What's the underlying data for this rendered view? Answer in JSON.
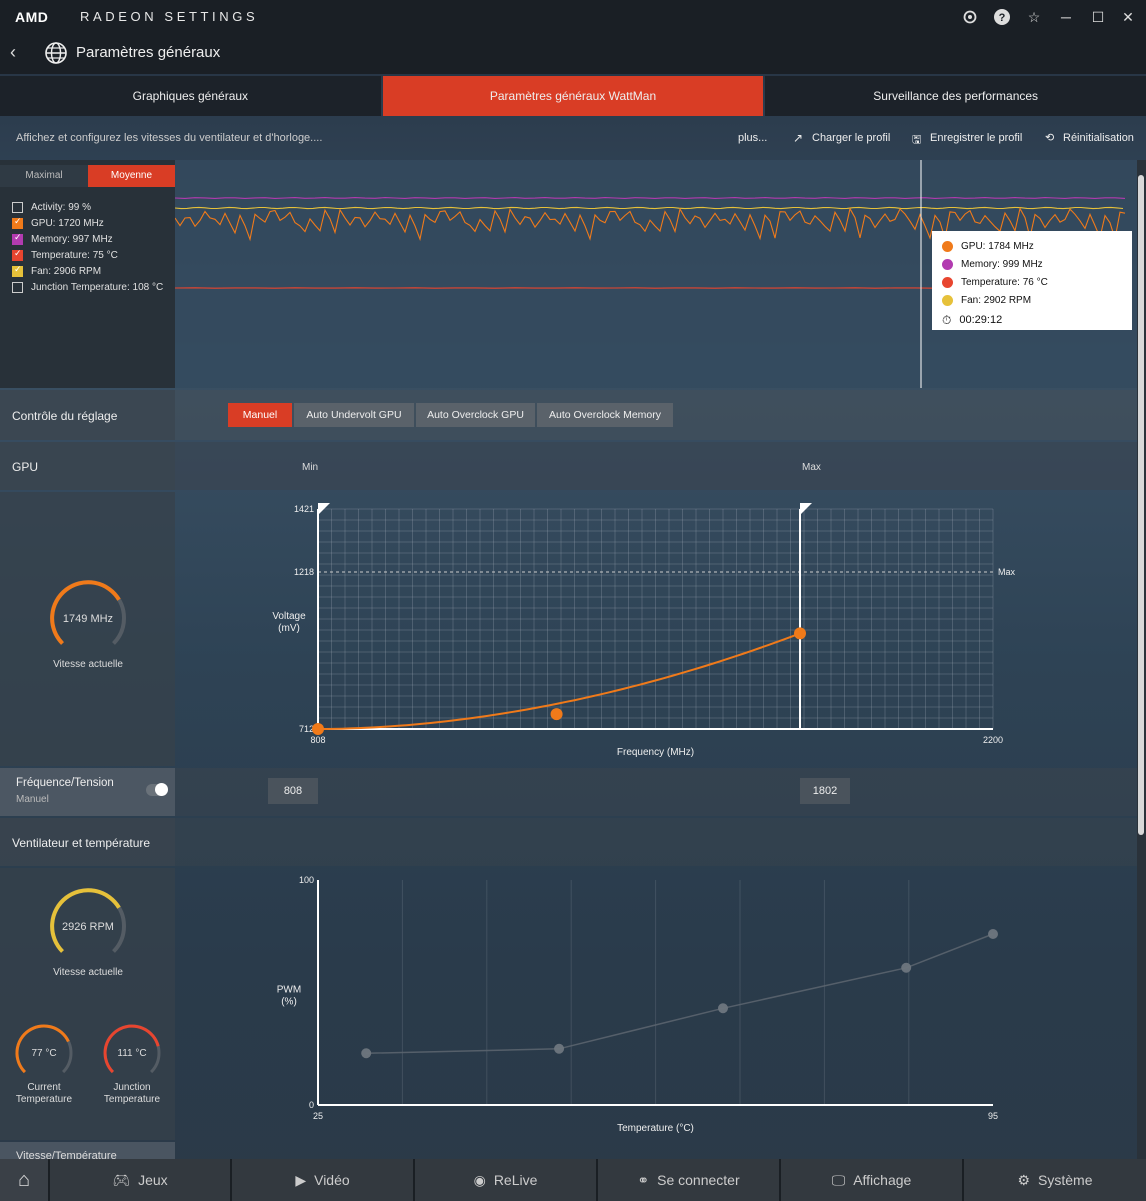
{
  "app": {
    "logo": "AMD",
    "title": "RADEON SETTINGS"
  },
  "header": {
    "page_title": "Paramètres généraux"
  },
  "tabs": [
    {
      "label": "Graphiques généraux",
      "active": false
    },
    {
      "label": "Paramètres généraux WattMan",
      "active": true
    },
    {
      "label": "Surveillance des performances",
      "active": false
    }
  ],
  "actions": {
    "description": "Affichez et configurez les vitesses du ventilateur et d'horloge....",
    "more": "plus...",
    "load_profile": "Charger le profil",
    "save_profile": "Enregistrer le profil",
    "reset": "Réinitialisation"
  },
  "monitor": {
    "tabs": [
      {
        "label": "Maximal",
        "active": false
      },
      {
        "label": "Moyenne",
        "active": true
      }
    ],
    "legend": [
      {
        "label": "Activity: 99 %",
        "color": "#ffffff",
        "checked": false
      },
      {
        "label": "GPU: 1720 MHz",
        "color": "#f07a1a",
        "checked": true
      },
      {
        "label": "Memory: 997 MHz",
        "color": "#b23bb0",
        "checked": true
      },
      {
        "label": "Temperature: 75 °C",
        "color": "#e8452f",
        "checked": true
      },
      {
        "label": "Fan: 2906 RPM",
        "color": "#e6c13a",
        "checked": true
      },
      {
        "label": "Junction Temperature: 108 °C",
        "color": "#ffffff",
        "checked": false
      }
    ],
    "tooltip": [
      {
        "label": "GPU: 1784 MHz",
        "color": "#f07a1a"
      },
      {
        "label": "Memory: 999 MHz",
        "color": "#b23bb0"
      },
      {
        "label": "Temperature: 76 °C",
        "color": "#e8452f"
      },
      {
        "label": "Fan: 2902 RPM",
        "color": "#e6c13a"
      }
    ],
    "tooltip_time": "00:29:12"
  },
  "tuning": {
    "label": "Contrôle du réglage",
    "modes": [
      {
        "label": "Manuel",
        "active": true
      },
      {
        "label": "Auto Undervolt GPU",
        "active": false
      },
      {
        "label": "Auto Overclock GPU",
        "active": false
      },
      {
        "label": "Auto Overclock Memory",
        "active": false
      }
    ]
  },
  "gpu": {
    "label": "GPU",
    "min_label": "Min",
    "max_label": "Max",
    "gauge_value": "1749 MHz",
    "gauge_fraction": 0.72,
    "gauge_caption": "Vitesse actuelle",
    "freq_label": "Fréquence/Tension",
    "freq_sub": "Manuel",
    "min_value": "808",
    "max_value": "1802"
  },
  "fan": {
    "label": "Ventilateur et température",
    "gauge_value": "2926 RPM",
    "gauge_fraction": 0.72,
    "gauge_caption": "Vitesse actuelle",
    "current_temp": "77 °C",
    "current_temp_fraction": 0.74,
    "current_temp_label_1": "Current",
    "current_temp_label_2": "Temperature",
    "junction_temp": "111 °C",
    "junction_temp_fraction": 0.78,
    "junction_temp_label_1": "Junction",
    "junction_temp_label_2": "Temperature",
    "next_section": "Vitesse/Température"
  },
  "bottom_nav": [
    {
      "label": "",
      "icon": "home-icon"
    },
    {
      "label": "Jeux",
      "icon": "gamepad-icon"
    },
    {
      "label": "Vidéo",
      "icon": "play-icon"
    },
    {
      "label": "ReLive",
      "icon": "relive-icon"
    },
    {
      "label": "Se connecter",
      "icon": "connect-icon"
    },
    {
      "label": "Affichage",
      "icon": "monitor-icon"
    },
    {
      "label": "Système",
      "icon": "gear-icon"
    }
  ],
  "chart_data": [
    {
      "type": "line",
      "title": "",
      "xlabel": "Frequency (MHz)",
      "ylabel": "Voltage (mV)",
      "xlim": [
        808,
        2200
      ],
      "ylim": [
        712,
        1421
      ],
      "x_ticks": [
        "808",
        "2200"
      ],
      "y_ticks": [
        "712",
        "1218",
        "1421"
      ],
      "max_line_label": "Max",
      "max_line_y": 1218,
      "range_markers": [
        808,
        1802
      ],
      "series": [
        {
          "x": [
            808,
            1300,
            1802
          ],
          "y": [
            712,
            760,
            1020
          ]
        }
      ]
    },
    {
      "type": "line",
      "title": "",
      "xlabel": "Temperature (°C)",
      "ylabel": "PWM (%)",
      "xlim": [
        25,
        95
      ],
      "ylim": [
        0,
        100
      ],
      "x_ticks": [
        "25",
        "95"
      ],
      "y_ticks": [
        "0",
        "100"
      ],
      "series": [
        {
          "x": [
            30,
            50,
            67,
            86,
            95
          ],
          "y": [
            23,
            25,
            43,
            61,
            76
          ]
        }
      ]
    }
  ]
}
